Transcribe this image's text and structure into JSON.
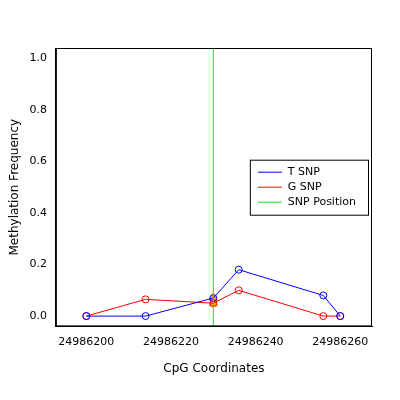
{
  "chart_data": {
    "type": "line",
    "x_label": "CpG Coordinates",
    "y_label": "Methylation Frequency",
    "xlim": [
      24986192.8,
      24986267.5
    ],
    "xticks": [
      24986200,
      24986220,
      24986240,
      24986260
    ],
    "ylim": [
      -0.04,
      1.04
    ],
    "yticks": [
      {
        "value": 0,
        "label": "0.0"
      },
      {
        "value": 0.2,
        "label": "0.2"
      },
      {
        "value": 0.4,
        "label": "0.4"
      },
      {
        "value": 0.6,
        "label": "0.6"
      },
      {
        "value": 0.8,
        "label": "0.8"
      },
      {
        "value": 1,
        "label": "1.0"
      }
    ],
    "grid": false,
    "legend": "right",
    "series": [
      {
        "name": "T SNP",
        "color": "blue",
        "marker": "circle",
        "line_style": "solid",
        "x": [
          24986200,
          24986214,
          24986230,
          24986236,
          24986256,
          24986260
        ],
        "values": [
          0,
          0,
          0.07,
          0.18,
          0.08,
          0
        ]
      },
      {
        "name": "G SNP",
        "color": "red",
        "marker": "circle",
        "line_style": "solid",
        "x": [
          24986200,
          24986214,
          24986230,
          24986236,
          24986256,
          24986260
        ],
        "values": [
          0,
          0.065,
          0.05,
          0.1,
          0,
          0
        ]
      }
    ],
    "snp_position": {
      "name": "SNP Position",
      "color": "#22dd22",
      "x": 24986230
    },
    "snp_marks": {
      "color": "orange",
      "marker": "triangle",
      "x": [
        24986230,
        24986230
      ],
      "values": [
        0.07,
        0.05
      ]
    }
  }
}
